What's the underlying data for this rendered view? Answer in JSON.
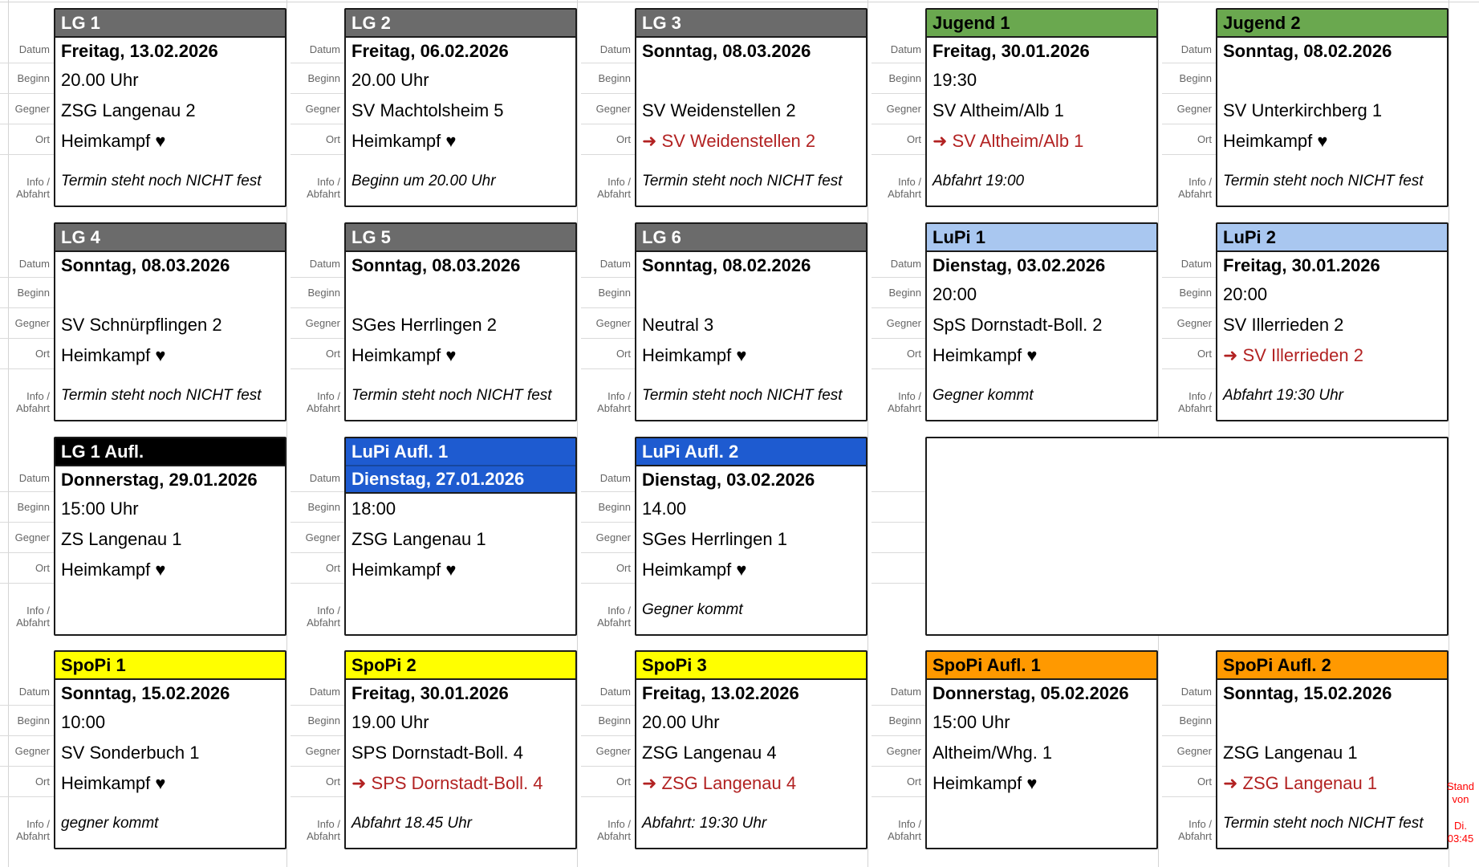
{
  "board": {
    "row_labels": {
      "datum": "Datum",
      "beginn": "Beginn",
      "gegner": "Gegner",
      "ort": "Ort",
      "info1": "Info /",
      "info2": "Abfahrt"
    }
  },
  "colors": {
    "header_styles": {
      "gray": {
        "bg": "#6b6b6b",
        "fg": "#ffffff"
      },
      "green": {
        "bg": "#6aa84f",
        "fg": "#000000"
      },
      "lightblue": {
        "bg": "#a9c7f0",
        "fg": "#000000"
      },
      "blue": {
        "bg": "#1e5bd0",
        "fg": "#ffffff"
      },
      "black": {
        "bg": "#000000",
        "fg": "#ffffff"
      },
      "yellow": {
        "bg": "#ffff00",
        "fg": "#000000"
      },
      "orange": {
        "bg": "#ff9900",
        "fg": "#000000"
      }
    },
    "away_text": "#b22222",
    "stand_note": "#ff0000"
  },
  "cards": [
    {
      "team": "LG 1",
      "style": "gray",
      "row": 1,
      "col": 1,
      "date": "Freitag, 13.02.2026",
      "time": "20.00 Uhr",
      "opponent": "ZSG Langenau 2",
      "ort": "Heimkampf ♥",
      "ort_type": "home",
      "info": "Termin steht noch NICHT fest",
      "date_highlight": false
    },
    {
      "team": "LG 2",
      "style": "gray",
      "row": 1,
      "col": 2,
      "date": "Freitag, 06.02.2026",
      "time": "20.00 Uhr",
      "opponent": "SV Machtolsheim 5",
      "ort": "Heimkampf ♥",
      "ort_type": "home",
      "info": "Beginn um 20.00 Uhr",
      "date_highlight": false
    },
    {
      "team": "LG 3",
      "style": "gray",
      "row": 1,
      "col": 3,
      "date": "Sonntag, 08.03.2026",
      "time": "",
      "opponent": "SV Weidenstellen 2",
      "ort": "➜ SV Weidenstellen 2",
      "ort_type": "away",
      "info": "Termin steht noch NICHT fest",
      "date_highlight": false
    },
    {
      "team": "Jugend 1",
      "style": "green",
      "row": 1,
      "col": 4,
      "date": "Freitag, 30.01.2026",
      "time": "19:30",
      "opponent": "SV Altheim/Alb 1",
      "ort": "➜ SV Altheim/Alb 1",
      "ort_type": "away",
      "info": "Abfahrt 19:00",
      "date_highlight": false
    },
    {
      "team": "Jugend 2",
      "style": "green",
      "row": 1,
      "col": 5,
      "date": "Sonntag, 08.02.2026",
      "time": "",
      "opponent": "SV Unterkirchberg 1",
      "ort": "Heimkampf ♥",
      "ort_type": "home",
      "info": "Termin steht noch NICHT fest",
      "date_highlight": false
    },
    {
      "team": "LG 4",
      "style": "gray",
      "row": 2,
      "col": 1,
      "date": "Sonntag, 08.03.2026",
      "time": "",
      "opponent": "SV Schnürpflingen 2",
      "ort": "Heimkampf ♥",
      "ort_type": "home",
      "info": "Termin steht noch NICHT fest",
      "date_highlight": false
    },
    {
      "team": "LG 5",
      "style": "gray",
      "row": 2,
      "col": 2,
      "date": "Sonntag, 08.03.2026",
      "time": "",
      "opponent": "SGes Herrlingen 2",
      "ort": "Heimkampf ♥",
      "ort_type": "home",
      "info": "Termin steht noch NICHT fest",
      "date_highlight": false
    },
    {
      "team": "LG 6",
      "style": "gray",
      "row": 2,
      "col": 3,
      "date": "Sonntag, 08.02.2026",
      "time": "",
      "opponent": "Neutral 3",
      "ort": "Heimkampf ♥",
      "ort_type": "home",
      "info": "Termin steht noch NICHT fest",
      "date_highlight": false
    },
    {
      "team": "LuPi 1",
      "style": "lightblue",
      "row": 2,
      "col": 4,
      "date": "Dienstag, 03.02.2026",
      "time": "20:00",
      "opponent": "SpS Dornstadt-Boll. 2",
      "ort": "Heimkampf ♥",
      "ort_type": "home",
      "info": "Gegner kommt",
      "date_highlight": false
    },
    {
      "team": "LuPi 2",
      "style": "lightblue",
      "row": 2,
      "col": 5,
      "date": "Freitag, 30.01.2026",
      "time": "20:00",
      "opponent": "SV Illerrieden 2",
      "ort": "➜ SV Illerrieden 2",
      "ort_type": "away",
      "info": "Abfahrt 19:30 Uhr",
      "date_highlight": false
    },
    {
      "team": "LG 1 Aufl.",
      "style": "black",
      "row": 3,
      "col": 1,
      "date": "Donnerstag, 29.01.2026",
      "time": "15:00 Uhr",
      "opponent": "ZS Langenau 1",
      "ort": "Heimkampf ♥",
      "ort_type": "home",
      "info": "",
      "date_highlight": false
    },
    {
      "team": "LuPi Aufl. 1",
      "style": "blue",
      "row": 3,
      "col": 2,
      "date": "Dienstag, 27.01.2026",
      "time": "18:00",
      "opponent": "ZSG Langenau 1",
      "ort": "Heimkampf ♥",
      "ort_type": "home",
      "info": "",
      "date_highlight": true
    },
    {
      "team": "LuPi Aufl. 2",
      "style": "blue",
      "row": 3,
      "col": 3,
      "date": "Dienstag, 03.02.2026",
      "time": "14.00",
      "opponent": "SGes Herrlingen 1",
      "ort": "Heimkampf ♥",
      "ort_type": "home",
      "info": "Gegner kommt",
      "date_highlight": false
    },
    {
      "team": "SpoPi 1",
      "style": "yellow",
      "row": 4,
      "col": 1,
      "date": "Sonntag, 15.02.2026",
      "time": "10:00",
      "opponent": "SV Sonderbuch 1",
      "ort": "Heimkampf ♥",
      "ort_type": "home",
      "info": "gegner kommt",
      "date_highlight": false
    },
    {
      "team": "SpoPi 2",
      "style": "yellow",
      "row": 4,
      "col": 2,
      "date": "Freitag, 30.01.2026",
      "time": "19.00 Uhr",
      "opponent": "SPS Dornstadt-Boll. 4",
      "ort": "➜ SPS Dornstadt-Boll. 4",
      "ort_type": "away",
      "info": "Abfahrt 18.45 Uhr",
      "date_highlight": false
    },
    {
      "team": "SpoPi 3",
      "style": "yellow",
      "row": 4,
      "col": 3,
      "date": "Freitag, 13.02.2026",
      "time": "20.00 Uhr",
      "opponent": "ZSG Langenau 4",
      "ort": "➜ ZSG Langenau 4",
      "ort_type": "away",
      "info": "Abfahrt: 19:30 Uhr",
      "date_highlight": false
    },
    {
      "team": "SpoPi Aufl. 1",
      "style": "orange",
      "row": 4,
      "col": 4,
      "date": "Donnerstag, 05.02.2026",
      "time": "15:00 Uhr",
      "opponent": "Altheim/Whg. 1",
      "ort": "Heimkampf ♥",
      "ort_type": "home",
      "info": "",
      "date_highlight": false
    },
    {
      "team": "SpoPi Aufl. 2",
      "style": "orange",
      "row": 4,
      "col": 5,
      "date": "Sonntag, 15.02.2026",
      "time": "",
      "opponent": "ZSG Langenau 1",
      "ort": "➜ ZSG Langenau 1",
      "ort_type": "away",
      "info": "Termin steht noch NICHT fest",
      "date_highlight": false
    }
  ],
  "empty_slot": {
    "row": 3,
    "col": 4,
    "span": 2
  },
  "stand_note": {
    "line1": "Stand von",
    "line2": "Di.",
    "line3": "03:45"
  }
}
